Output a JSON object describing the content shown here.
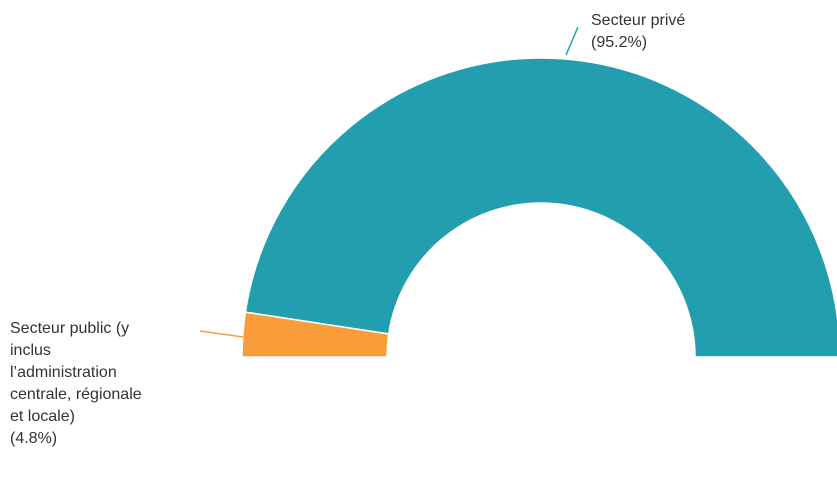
{
  "chart_data": {
    "type": "pie",
    "subtype": "semi-donut",
    "slices": [
      {
        "label": "Secteur public (y inclus l’administration centrale, régionale et locale)",
        "label_lines": [
          "Secteur public (y",
          "inclus",
          "l’administration",
          "centrale, régionale",
          "et locale)"
        ],
        "value": 4.8,
        "value_label": "(4.8%)",
        "color": "#F99D3A"
      },
      {
        "label": "Secteur privé",
        "label_lines": [
          "Secteur privé"
        ],
        "value": 95.2,
        "value_label": "(95.2%)",
        "color": "#239EAF"
      }
    ]
  }
}
